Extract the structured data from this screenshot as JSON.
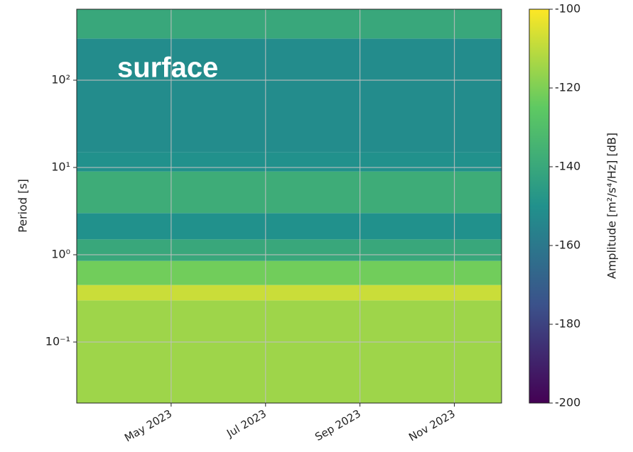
{
  "chart_data": {
    "type": "heatmap",
    "ylabel": "Period [s]",
    "colorbar_label": "Amplitude [m²/s⁴/Hz] [dB]",
    "annotation": "surface",
    "colormap": "viridis",
    "log_y": true,
    "grid": true,
    "xlim": [
      "2023-03",
      "2023-12"
    ],
    "xticks": [
      {
        "value": "2023-05",
        "label": "May 2023"
      },
      {
        "value": "2023-07",
        "label": "Jul 2023"
      },
      {
        "value": "2023-09",
        "label": "Sep 2023"
      },
      {
        "value": "2023-11",
        "label": "Nov 2023"
      }
    ],
    "ylim": [
      0.02,
      650
    ],
    "yticks": [
      {
        "value": 0.1,
        "label": "10⁻¹"
      },
      {
        "value": 1,
        "label": "10⁰"
      },
      {
        "value": 10,
        "label": "10¹"
      },
      {
        "value": 100,
        "label": "10²"
      }
    ],
    "y_bins": [
      0.02,
      0.3,
      0.45,
      0.85,
      1.5,
      3,
      9,
      15,
      300,
      650
    ],
    "values": [
      -115,
      -108,
      -122,
      -140,
      -150,
      -138,
      -150,
      -152,
      -140
    ],
    "clim": [
      -200,
      -100
    ],
    "cticks": [
      -200,
      -180,
      -160,
      -140,
      -120,
      -100
    ]
  }
}
